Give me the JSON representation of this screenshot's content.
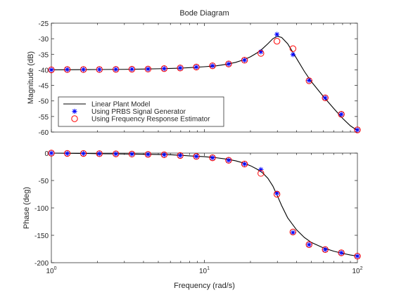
{
  "chart_data": [
    {
      "type": "line",
      "title": "Bode Diagram",
      "xlabel": "",
      "ylabel": "Magnitude (dB)",
      "xscale": "log",
      "xlim": [
        1,
        100
      ],
      "ylim": [
        -60,
        -25
      ],
      "yticks": [
        -25,
        -30,
        -35,
        -40,
        -45,
        -50,
        -55,
        -60
      ],
      "grid": false,
      "legend_position": "lower-left",
      "legend": [
        "Linear Plant Model",
        "Using PRBS Signal Generator",
        "Using Frequency Response Estimator"
      ],
      "series": [
        {
          "name": "Linear Plant Model",
          "style": "line",
          "color": "#000000",
          "x": [
            1,
            1.5,
            2,
            3,
            4,
            5,
            6,
            7,
            8,
            10,
            12,
            14,
            16,
            18,
            20,
            22,
            24,
            26,
            28,
            30,
            32,
            35,
            40,
            45,
            50,
            60,
            70,
            80,
            90,
            100
          ],
          "y": [
            -40,
            -39.95,
            -39.9,
            -39.85,
            -39.75,
            -39.65,
            -39.55,
            -39.45,
            -39.3,
            -39.0,
            -38.7,
            -38.2,
            -37.6,
            -36.8,
            -35.8,
            -34.6,
            -33.2,
            -31.6,
            -30.0,
            -29.2,
            -29.6,
            -31.6,
            -36.3,
            -40.5,
            -43.8,
            -48.6,
            -52.4,
            -55.6,
            -58.0,
            -59.5
          ]
        },
        {
          "name": "Using PRBS Signal Generator",
          "style": "star",
          "color": "#0000ff",
          "x": [
            1,
            1.27,
            1.62,
            2.06,
            2.64,
            3.36,
            4.28,
            5.46,
            6.95,
            8.86,
            11.3,
            14.4,
            18.3,
            23.4,
            29.8,
            37.9,
            48.3,
            61.6,
            78.5,
            100
          ],
          "y": [
            -40.0,
            -39.9,
            -39.9,
            -39.9,
            -39.85,
            -39.8,
            -39.75,
            -39.6,
            -39.4,
            -39.1,
            -38.7,
            -38.1,
            -36.9,
            -34.2,
            -28.6,
            -35.1,
            -43.4,
            -49.0,
            -54.3,
            -59.3
          ]
        },
        {
          "name": "Using Frequency Response Estimator",
          "style": "circle",
          "color": "#ff0000",
          "x": [
            1,
            1.27,
            1.62,
            2.06,
            2.64,
            3.36,
            4.28,
            5.46,
            6.95,
            8.86,
            11.3,
            14.4,
            18.3,
            23.4,
            29.8,
            37.9,
            48.3,
            61.6,
            78.5,
            100
          ],
          "y": [
            -40.0,
            -39.9,
            -39.9,
            -39.9,
            -39.85,
            -39.8,
            -39.75,
            -39.6,
            -39.4,
            -39.1,
            -38.7,
            -38.1,
            -36.9,
            -34.7,
            -30.8,
            -33.2,
            -43.5,
            -49.0,
            -54.3,
            -59.3
          ]
        }
      ]
    },
    {
      "type": "line",
      "title": "",
      "xlabel": "Frequency (rad/s)",
      "ylabel": "Phase (deg)",
      "xscale": "log",
      "xlim": [
        1,
        100
      ],
      "ylim": [
        -200,
        0
      ],
      "xticks": [
        1,
        10,
        100
      ],
      "yticks": [
        0,
        -50,
        -100,
        -150,
        -200
      ],
      "grid": false,
      "series": [
        {
          "name": "Linear Plant Model",
          "style": "line",
          "color": "#000000",
          "x": [
            1,
            1.5,
            2,
            3,
            4,
            5,
            6,
            7,
            8,
            10,
            12,
            14,
            16,
            18,
            20,
            22,
            24,
            26,
            28,
            30,
            32,
            35,
            40,
            45,
            50,
            60,
            70,
            80,
            90,
            100
          ],
          "y": [
            0,
            -0.5,
            -1.0,
            -1.5,
            -2.0,
            -2.5,
            -3.0,
            -4.0,
            -5.0,
            -6.5,
            -8.5,
            -11,
            -14,
            -18,
            -23,
            -29,
            -36,
            -46,
            -60,
            -78,
            -96,
            -118,
            -140,
            -154,
            -163,
            -173,
            -179,
            -183,
            -186,
            -188
          ]
        },
        {
          "name": "Using PRBS Signal Generator",
          "style": "star",
          "color": "#0000ff",
          "x": [
            1,
            1.27,
            1.62,
            2.06,
            2.64,
            3.36,
            4.28,
            5.46,
            6.95,
            8.86,
            11.3,
            14.4,
            18.3,
            23.4,
            29.8,
            37.9,
            48.3,
            61.6,
            78.5,
            100
          ],
          "y": [
            0,
            -0.5,
            -0.7,
            -1.0,
            -1.3,
            -1.7,
            -2.3,
            -3.0,
            -4.4,
            -6.0,
            -8.5,
            -13,
            -20,
            -30,
            -73,
            -145,
            -167,
            -176,
            -182,
            -188
          ]
        },
        {
          "name": "Using Frequency Response Estimator",
          "style": "circle",
          "color": "#ff0000",
          "x": [
            1,
            1.27,
            1.62,
            2.06,
            2.64,
            3.36,
            4.28,
            5.46,
            6.95,
            8.86,
            11.3,
            14.4,
            18.3,
            23.4,
            29.8,
            37.9,
            48.3,
            61.6,
            78.5,
            100
          ],
          "y": [
            0,
            -0.5,
            -0.7,
            -1.0,
            -1.3,
            -1.7,
            -2.3,
            -3.0,
            -4.4,
            -6.0,
            -8.5,
            -13,
            -20,
            -37,
            -75,
            -144,
            -167,
            -176,
            -182,
            -188
          ]
        }
      ]
    }
  ]
}
